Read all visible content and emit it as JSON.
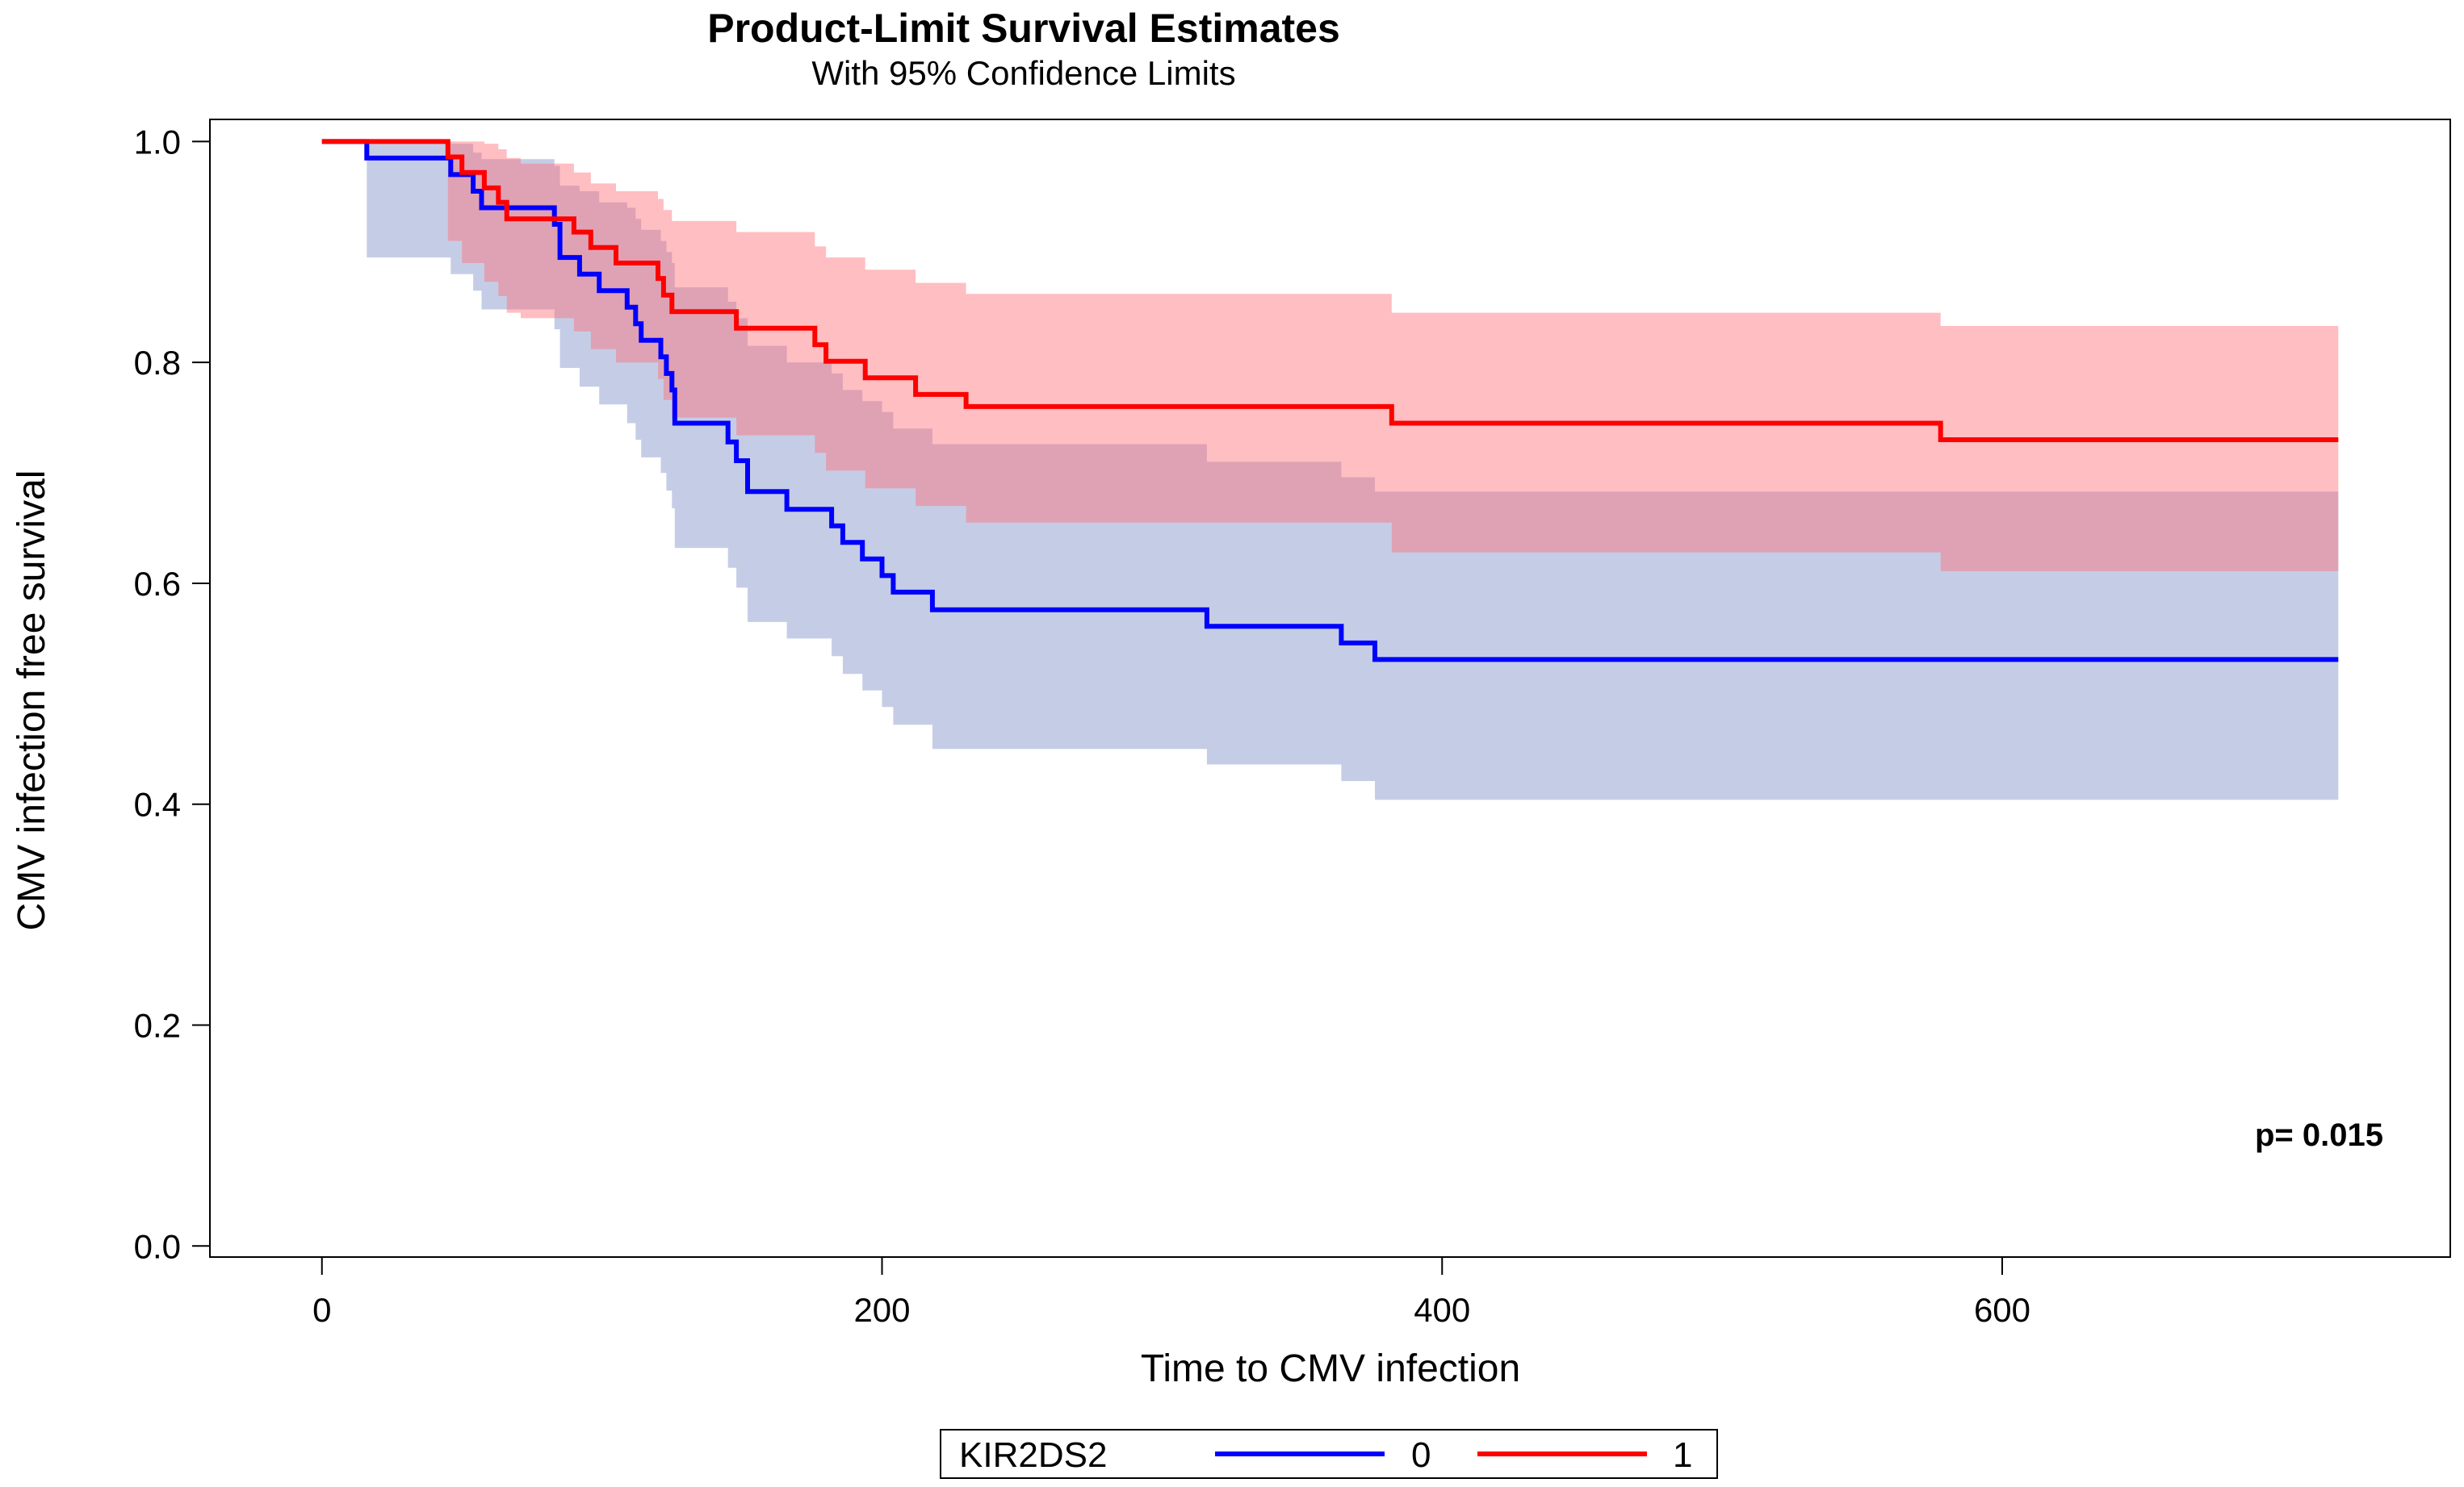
{
  "chart_data": {
    "type": "line",
    "subtype": "kaplan-meier step with 95% confidence bands",
    "title": "Product-Limit Survival Estimates",
    "subtitle": "With 95% Confidence Limits",
    "xlabel": "Time to CMV infection",
    "ylabel": "CMV infection free survival",
    "xlim": [
      -40,
      760
    ],
    "ylim": [
      -0.01,
      1.02
    ],
    "xticks": [
      0,
      200,
      400,
      600
    ],
    "yticks": [
      0.0,
      0.2,
      0.4,
      0.6,
      0.8,
      1.0
    ],
    "xtick_labels": [
      "0",
      "200",
      "400",
      "600"
    ],
    "ytick_labels": [
      "0.0",
      "0.2",
      "0.4",
      "0.6",
      "0.8",
      "1.0"
    ],
    "annotation": "p= 0.015",
    "legend": {
      "title": "KIR2DS2",
      "position": "bottom-center"
    },
    "series": [
      {
        "name": "0",
        "color": "#0000ff",
        "band_color": "#c5cce6",
        "x": [
          0,
          16,
          46,
          54,
          57,
          83,
          85,
          92,
          99,
          109,
          112,
          114,
          121,
          123,
          125,
          126,
          145,
          148,
          152,
          166,
          182,
          186,
          193,
          200,
          204,
          218,
          316,
          364,
          376,
          720
        ],
        "y": [
          1.0,
          0.985,
          0.97,
          0.955,
          0.94,
          0.925,
          0.895,
          0.88,
          0.865,
          0.85,
          0.835,
          0.82,
          0.805,
          0.79,
          0.775,
          0.745,
          0.728,
          0.711,
          0.683,
          0.667,
          0.652,
          0.637,
          0.622,
          0.607,
          0.592,
          0.576,
          0.561,
          0.546,
          0.531,
          0.531
        ],
        "lower": [
          1.0,
          0.895,
          0.88,
          0.865,
          0.848,
          0.83,
          0.795,
          0.778,
          0.762,
          0.745,
          0.73,
          0.714,
          0.7,
          0.684,
          0.668,
          0.632,
          0.614,
          0.596,
          0.565,
          0.55,
          0.534,
          0.518,
          0.503,
          0.488,
          0.472,
          0.45,
          0.436,
          0.421,
          0.404,
          0.404
        ],
        "upper": [
          1.0,
          1.0,
          0.998,
          0.99,
          0.984,
          0.978,
          0.96,
          0.955,
          0.945,
          0.94,
          0.93,
          0.92,
          0.91,
          0.9,
          0.89,
          0.868,
          0.855,
          0.84,
          0.815,
          0.8,
          0.79,
          0.775,
          0.765,
          0.755,
          0.74,
          0.726,
          0.71,
          0.696,
          0.683,
          0.683
        ]
      },
      {
        "name": "1",
        "color": "#ff0000",
        "band_color": "#ffc0c4",
        "x": [
          0,
          45,
          50,
          58,
          63,
          66,
          71,
          90,
          96,
          105,
          120,
          122,
          125,
          148,
          176,
          180,
          194,
          212,
          230,
          382,
          578,
          720
        ],
        "y": [
          1.0,
          0.986,
          0.972,
          0.958,
          0.945,
          0.93,
          0.93,
          0.918,
          0.904,
          0.89,
          0.876,
          0.861,
          0.846,
          0.831,
          0.816,
          0.801,
          0.786,
          0.771,
          0.76,
          0.745,
          0.73,
          0.73
        ],
        "lower": [
          1.0,
          0.91,
          0.89,
          0.873,
          0.86,
          0.845,
          0.84,
          0.828,
          0.812,
          0.8,
          0.785,
          0.766,
          0.75,
          0.734,
          0.718,
          0.702,
          0.686,
          0.67,
          0.655,
          0.628,
          0.611,
          0.611
        ],
        "upper": [
          1.0,
          1.0,
          1.0,
          0.998,
          0.993,
          0.985,
          0.98,
          0.972,
          0.962,
          0.955,
          0.948,
          0.938,
          0.928,
          0.918,
          0.905,
          0.895,
          0.884,
          0.872,
          0.862,
          0.845,
          0.833,
          0.833
        ]
      }
    ]
  }
}
